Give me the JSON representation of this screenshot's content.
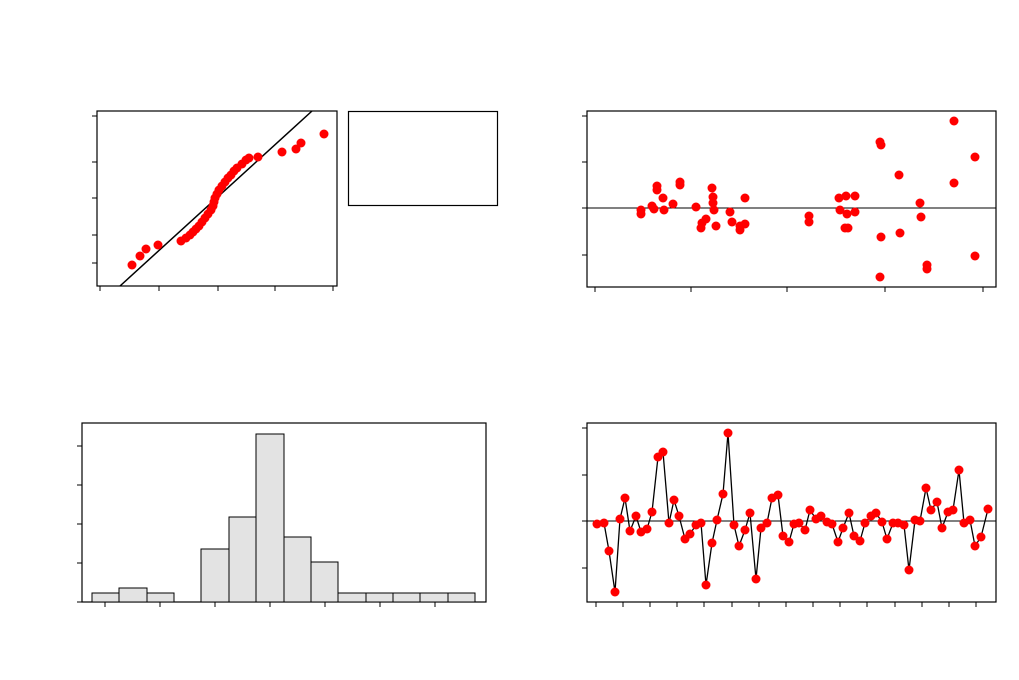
{
  "chart_data": [
    {
      "type": "scatter",
      "color": "#ff0000",
      "line_color": "#000000",
      "xlim": [
        0,
        240
      ],
      "ylim": [
        0,
        175
      ],
      "xticks": [
        3,
        62,
        121,
        178,
        236
      ],
      "yticks": [
        23,
        51,
        88,
        124,
        170
      ],
      "x": [
        35,
        43,
        49,
        61,
        84,
        89,
        93,
        96,
        99,
        102,
        105,
        108,
        111,
        114,
        116,
        117,
        118,
        120,
        122,
        125,
        128,
        131,
        134,
        137,
        140,
        145,
        149,
        152,
        161,
        185,
        199,
        204,
        227
      ],
      "values": [
        21,
        30,
        37,
        41,
        45,
        48,
        51,
        54,
        57,
        60,
        64,
        68,
        72,
        76,
        80,
        84,
        88,
        92,
        96,
        100,
        104,
        108,
        111,
        115,
        118,
        122,
        126,
        128,
        129,
        134,
        137,
        143,
        152
      ],
      "fit_line": {
        "x": [
          23,
          215
        ],
        "values": [
          0,
          175
        ]
      }
    },
    {
      "type": "scatter",
      "color": "#ff0000",
      "line_color": "#000000",
      "xlim": [
        0,
        409
      ],
      "ylim": [
        -79,
        97
      ],
      "xticks": [
        8,
        104,
        200,
        298,
        396
      ],
      "yticks": [
        -47,
        0,
        46,
        92
      ],
      "x": [
        54,
        54,
        65,
        67,
        70,
        70,
        76,
        77,
        86,
        93,
        93,
        109,
        114,
        115,
        119,
        125,
        126,
        126,
        127,
        129,
        143,
        145,
        153,
        153,
        158,
        158,
        222,
        222,
        252,
        253,
        258,
        259,
        260,
        261,
        268,
        268,
        293,
        294,
        294,
        293,
        312,
        313,
        333,
        334,
        340,
        340,
        367,
        367,
        388,
        388
      ],
      "values": [
        -2,
        -6,
        2,
        -1,
        22,
        18,
        10,
        -2,
        4,
        26,
        23,
        1,
        -20,
        -15,
        -11,
        20,
        11,
        5,
        -2,
        -18,
        -4,
        -14,
        -22,
        -18,
        -16,
        10,
        -8,
        -14,
        10,
        -2,
        -20,
        12,
        -6,
        -20,
        12,
        -4,
        66,
        63,
        -29,
        -69,
        33,
        -25,
        5,
        -9,
        -57,
        -61,
        87,
        25,
        51,
        -48
      ]
    },
    {
      "type": "histogram",
      "color": "#e3e3e3",
      "xlim": [
        0,
        404
      ],
      "ylim": [
        0,
        179
      ],
      "xticks": [
        23,
        78,
        133,
        188,
        243,
        298,
        353
      ],
      "yticks": [
        0,
        39,
        78,
        117,
        156
      ],
      "bins": [
        10,
        37,
        65,
        92,
        119,
        147,
        174,
        202,
        229,
        256,
        284,
        311,
        338,
        366,
        393
      ],
      "values": [
        9,
        14,
        9,
        0,
        53,
        85,
        168,
        65,
        40,
        9,
        9,
        9,
        9,
        9
      ]
    },
    {
      "type": "line",
      "color": "#ff0000",
      "line_color": "#000000",
      "xlim": [
        0,
        409
      ],
      "ylim": [
        -81,
        98
      ],
      "xticks": [
        9,
        36,
        63,
        90,
        117,
        145,
        172,
        199,
        226,
        253,
        280,
        308,
        335,
        362,
        389
      ],
      "yticks": [
        -47,
        0,
        46,
        93
      ],
      "x": [
        10,
        17,
        22,
        28,
        33,
        38,
        43,
        49,
        54,
        60,
        65,
        71,
        76,
        82,
        87,
        92,
        98,
        103,
        109,
        114,
        119,
        125,
        130,
        136,
        141,
        147,
        152,
        158,
        163,
        169,
        174,
        180,
        185,
        191,
        196,
        202,
        207,
        212,
        218,
        223,
        229,
        234,
        240,
        245,
        251,
        256,
        262,
        267,
        273,
        278,
        284,
        289,
        295,
        300,
        306,
        311,
        317,
        322,
        328,
        333,
        339,
        344,
        350,
        355,
        361,
        366,
        372,
        377,
        383,
        388,
        394,
        401
      ],
      "values": [
        -3,
        -2,
        -30,
        -71,
        2,
        23,
        -10,
        5,
        -11,
        -8,
        9,
        64,
        69,
        -2,
        21,
        5,
        -18,
        -13,
        -4,
        -2,
        -64,
        -22,
        1,
        27,
        88,
        -4,
        -25,
        -9,
        8,
        -58,
        -7,
        -2,
        23,
        26,
        -15,
        -21,
        -3,
        -2,
        -9,
        11,
        2,
        5,
        -1,
        -3,
        -21,
        -7,
        8,
        -15,
        -20,
        -2,
        5,
        8,
        -1,
        -18,
        -2,
        -2,
        -4,
        -49,
        1,
        0,
        33,
        11,
        19,
        -7,
        9,
        11,
        51,
        -2,
        1,
        -25,
        -16,
        12
      ]
    }
  ]
}
